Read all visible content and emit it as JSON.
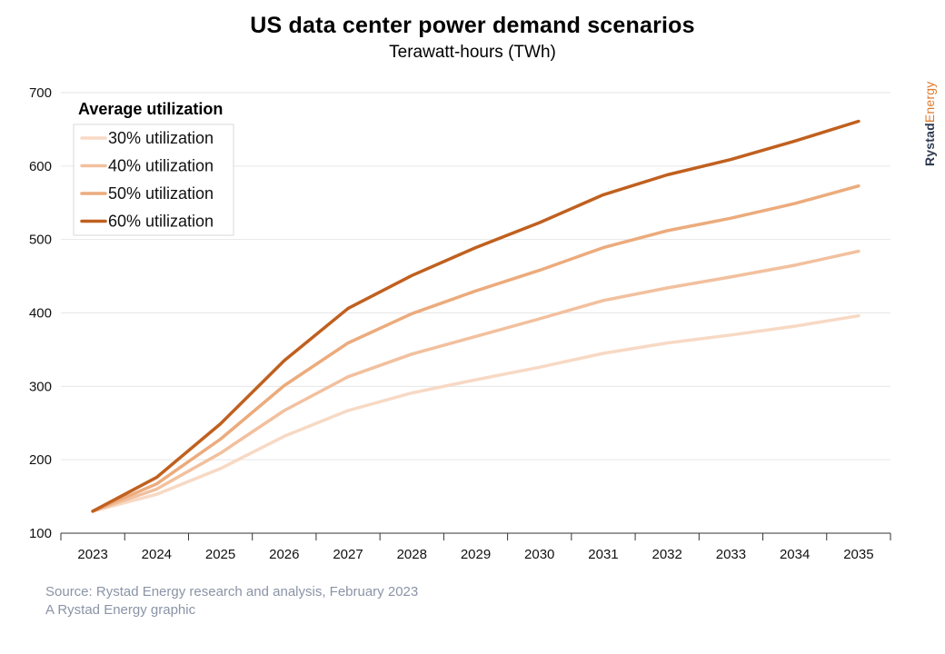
{
  "chart_data": {
    "type": "line",
    "title": "US data center power demand scenarios",
    "subtitle": "Terawatt-hours (TWh)",
    "xlabel": "",
    "ylabel": "",
    "x": [
      "2023",
      "2024",
      "2025",
      "2026",
      "2027",
      "2028",
      "2029",
      "2030",
      "2031",
      "2032",
      "2033",
      "2034",
      "2035"
    ],
    "ylim": [
      100,
      700
    ],
    "yticks": [
      100,
      200,
      300,
      400,
      500,
      600,
      700
    ],
    "grid": true,
    "legend_title": "Average utilization",
    "legend_position": "top-left",
    "series": [
      {
        "name": "30% utilization",
        "color": "#f7d9c4",
        "values": [
          130,
          153,
          188,
          232,
          267,
          291,
          309,
          326,
          345,
          359,
          370,
          382,
          396
        ]
      },
      {
        "name": "40% utilization",
        "color": "#f2c09e",
        "values": [
          130,
          160,
          209,
          267,
          313,
          344,
          368,
          392,
          417,
          434,
          449,
          465,
          484
        ]
      },
      {
        "name": "50% utilization",
        "color": "#ecab7c",
        "values": [
          130,
          167,
          228,
          301,
          359,
          399,
          430,
          458,
          489,
          512,
          529,
          549,
          573
        ]
      },
      {
        "name": "60% utilization",
        "color": "#c0601f",
        "values": [
          130,
          176,
          249,
          335,
          406,
          451,
          489,
          523,
          561,
          588,
          609,
          634,
          661
        ]
      }
    ]
  },
  "brand": {
    "part1": "Rystad",
    "part2": "Energy"
  },
  "footer": {
    "source": "Source: Rystad Energy research and analysis, February 2023",
    "credit": "A Rystad Energy graphic"
  }
}
